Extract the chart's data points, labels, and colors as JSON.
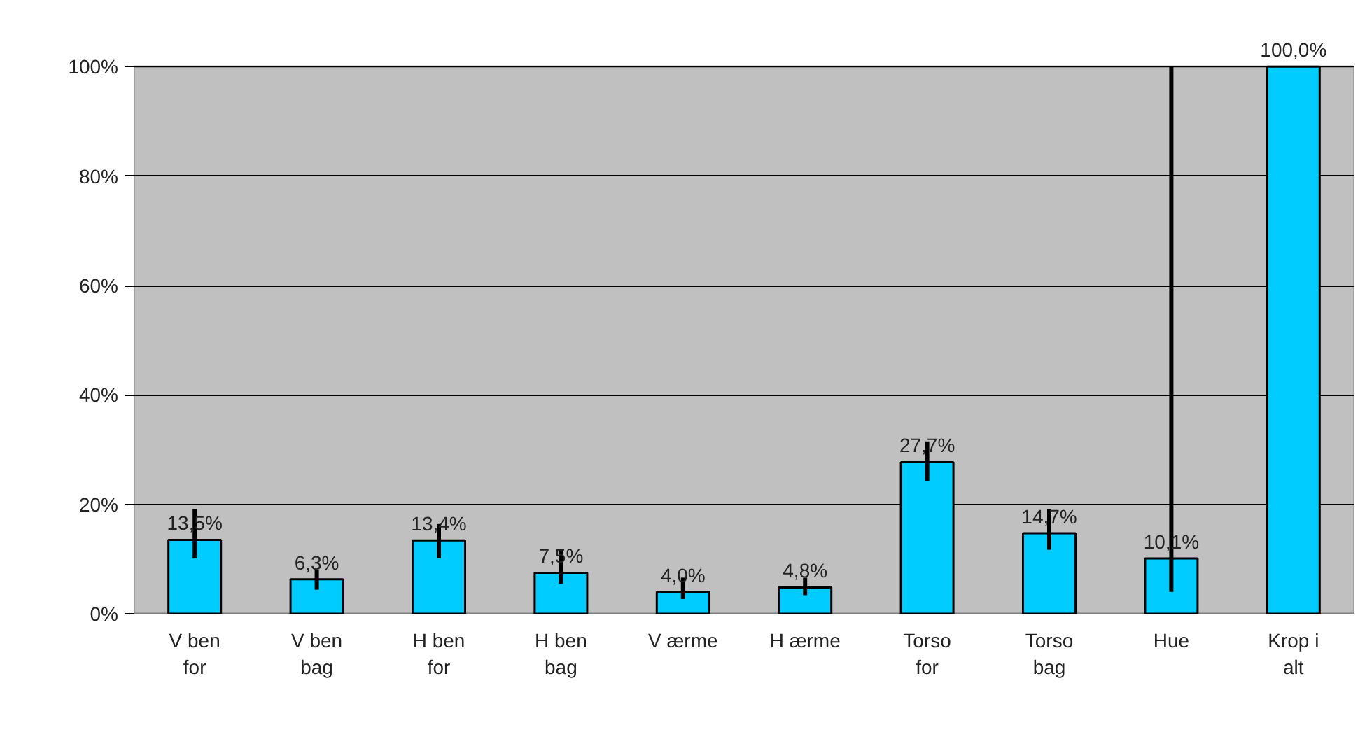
{
  "chart_data": {
    "type": "bar",
    "categories": [
      "V ben for",
      "V ben bag",
      "H ben for",
      "H ben bag",
      "V ærme",
      "H ærme",
      "Torso for",
      "Torso bag",
      "Hue",
      "Krop i alt"
    ],
    "values": [
      13.5,
      6.3,
      13.4,
      7.5,
      4.0,
      4.8,
      27.7,
      14.7,
      10.1,
      100.0
    ],
    "color": "#00ccff",
    "value_labels": [
      "13,5%",
      "6,3%",
      "13,4%",
      "7,5%",
      "4,0%",
      "4,8%",
      "27,7%",
      "14,7%",
      "10,1%",
      "100,0%"
    ],
    "errors": [
      [
        10.1,
        19.1
      ],
      [
        4.4,
        8.1
      ],
      [
        10.1,
        16.4
      ],
      [
        5.5,
        11.7
      ],
      [
        2.7,
        6.6
      ],
      [
        3.4,
        6.6
      ],
      [
        24.2,
        31.5
      ],
      [
        11.7,
        19.1
      ],
      [
        4.0,
        100
      ],
      null
    ],
    "ylim": [
      0,
      100
    ],
    "yticks": [
      {
        "value": 0,
        "label": "0%"
      },
      {
        "value": 20,
        "label": "20%"
      },
      {
        "value": 40,
        "label": "40%"
      },
      {
        "value": 60,
        "label": "60%"
      },
      {
        "value": 80,
        "label": "80%"
      },
      {
        "value": 100,
        "label": "100%"
      }
    ],
    "grid": "y"
  }
}
